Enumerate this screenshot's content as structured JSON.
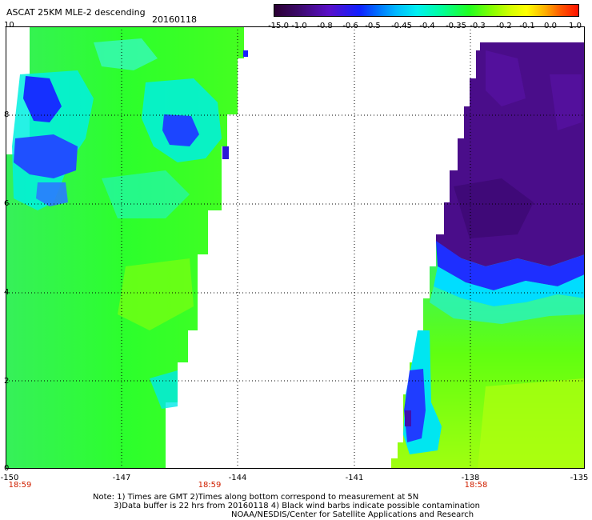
{
  "header": {
    "title": "ASCAT 25KM MLE-2 descending",
    "date": "20160118"
  },
  "colorbar": {
    "labels": [
      "-15.0",
      "-1.0",
      "-0.8",
      "-0.6",
      "-0.5",
      "-0.45",
      "-0.4",
      "-0.35",
      "-0.3",
      "-0.2",
      "-0.1",
      "0.0",
      "1.0"
    ]
  },
  "axes": {
    "y_ticks": [
      "10",
      "8",
      "6",
      "4",
      "2",
      "0"
    ],
    "x_ticks": [
      "-150",
      "-147",
      "-144",
      "-141",
      "-138",
      "-135"
    ]
  },
  "times": [
    "18:59",
    "18:59",
    "18:58"
  ],
  "notes": {
    "line1": "Note: 1) Times are GMT 2)Times along bottom correspond to measurement at 5N",
    "line2": "3)Data buffer is 22 hrs from 20160118 4) Black wind barbs indicate possible contamination",
    "line3": "NOAA/NESDIS/Center for Satellite Applications and Research"
  },
  "colors": {
    "purple": "#4a0d8a",
    "blue": "#1e2fff",
    "cyan": "#00f0f0",
    "green": "#2cff2c",
    "lime": "#9cff12",
    "time_red": "#d02000"
  }
}
